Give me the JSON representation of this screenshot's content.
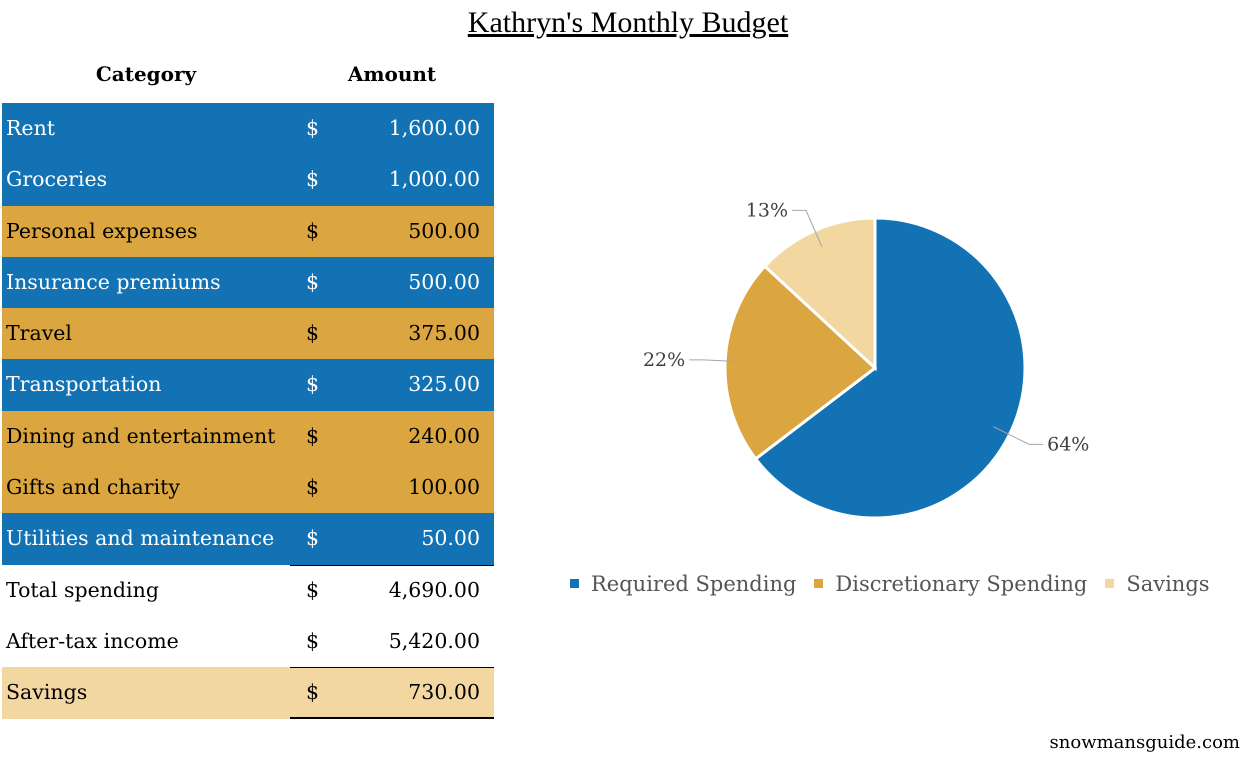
{
  "title": "Kathryn's Monthly Budget",
  "table": {
    "headers": {
      "category": "Category",
      "amount": "Amount"
    },
    "currency": "$",
    "rows": [
      {
        "category": "Rent",
        "amount": "1,600.00",
        "group": "required"
      },
      {
        "category": "Groceries",
        "amount": "1,000.00",
        "group": "required"
      },
      {
        "category": "Personal expenses",
        "amount": "500.00",
        "group": "discretionary"
      },
      {
        "category": "Insurance premiums",
        "amount": "500.00",
        "group": "required"
      },
      {
        "category": "Travel",
        "amount": "375.00",
        "group": "discretionary"
      },
      {
        "category": "Transportation",
        "amount": "325.00",
        "group": "required"
      },
      {
        "category": "Dining and entertainment",
        "amount": "240.00",
        "group": "discretionary"
      },
      {
        "category": "Gifts and charity",
        "amount": "100.00",
        "group": "discretionary"
      },
      {
        "category": "Utilities and maintenance",
        "amount": "50.00",
        "group": "required"
      }
    ],
    "totals": [
      {
        "category": "Total spending",
        "amount": "4,690.00",
        "style": "plain"
      },
      {
        "category": "After-tax income",
        "amount": "5,420.00",
        "style": "plain"
      },
      {
        "category": "Savings",
        "amount": "730.00",
        "style": "savings"
      }
    ]
  },
  "chart_data": {
    "type": "pie",
    "categories": [
      "Required Spending",
      "Discretionary Spending",
      "Savings"
    ],
    "values": [
      64,
      22,
      13
    ],
    "labels": [
      "64%",
      "22%",
      "13%"
    ],
    "colors": [
      "#1272b4",
      "#dba540",
      "#f2d7a0"
    ],
    "legend": "bottom"
  },
  "footer": "snowmansguide.com"
}
